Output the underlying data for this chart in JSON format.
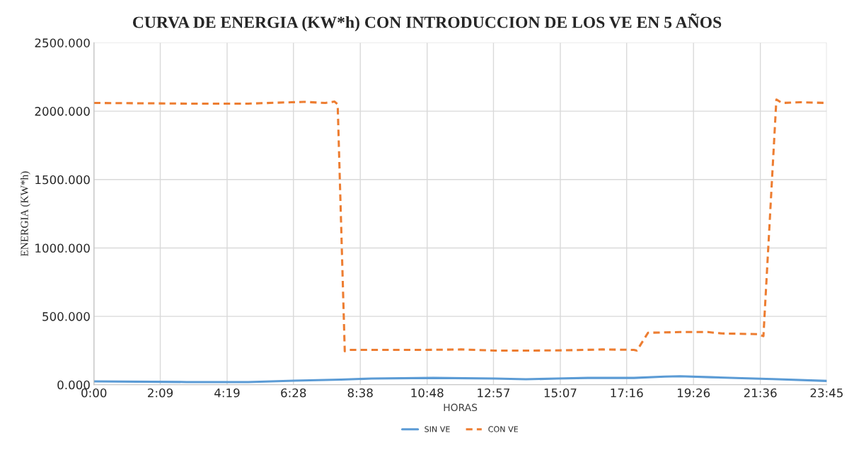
{
  "chart_data": {
    "type": "line",
    "title": "CURVA DE ENERGIA (KW*h) CON INTRODUCCION DE LOS VE EN 5 AÑOS",
    "xlabel": "HORAS",
    "ylabel": "ENERGIA (KW*h)",
    "xlim": [
      0,
      23.75
    ],
    "xticks": [
      {
        "value": 0,
        "label": "0:00"
      },
      {
        "value": 2.15,
        "label": "2:09"
      },
      {
        "value": 4.3167,
        "label": "4:19"
      },
      {
        "value": 6.4667,
        "label": "6:28"
      },
      {
        "value": 8.6333,
        "label": "8:38"
      },
      {
        "value": 10.8,
        "label": "10:48"
      },
      {
        "value": 12.95,
        "label": "12:57"
      },
      {
        "value": 15.1167,
        "label": "15:07"
      },
      {
        "value": 17.2667,
        "label": "17:16"
      },
      {
        "value": 19.4333,
        "label": "19:26"
      },
      {
        "value": 21.6,
        "label": "21:36"
      },
      {
        "value": 23.75,
        "label": "23:45"
      }
    ],
    "ylim": [
      0,
      2500
    ],
    "yticks": [
      {
        "value": 0,
        "label": "0.000"
      },
      {
        "value": 500,
        "label": "500.000"
      },
      {
        "value": 1000,
        "label": "1000.000"
      },
      {
        "value": 1500,
        "label": "1500.000"
      },
      {
        "value": 2000,
        "label": "2000.000"
      },
      {
        "value": 2500,
        "label": "2500.000"
      }
    ],
    "grid": true,
    "legend": "bottom",
    "series": [
      {
        "name": "SIN VE",
        "color": "#5b9bd5",
        "line_style": "solid",
        "x": [
          0,
          3,
          5,
          6.5,
          8,
          9,
          11,
          13,
          14,
          15,
          16,
          17.5,
          18.5,
          19,
          20,
          21,
          22,
          23.75
        ],
        "values": [
          25,
          20,
          20,
          30,
          38,
          45,
          50,
          45,
          40,
          45,
          50,
          50,
          60,
          62,
          55,
          48,
          42,
          28
        ]
      },
      {
        "name": "CON VE",
        "color": "#ed7d31",
        "line_style": "dashed",
        "x": [
          0,
          3.15,
          5,
          6.4,
          6.8,
          7.5,
          7.8,
          7.9,
          8.13,
          8.25,
          10.7,
          11.9,
          13,
          14.2,
          15.3,
          16.5,
          17.5,
          17.6,
          17.96,
          19,
          19.9,
          20.35,
          21.5,
          21.7,
          22.12,
          22.3,
          22.9,
          23.75
        ],
        "values": [
          2060,
          2055,
          2055,
          2065,
          2068,
          2060,
          2070,
          2050,
          245,
          255,
          255,
          258,
          250,
          250,
          252,
          258,
          255,
          250,
          380,
          385,
          385,
          375,
          370,
          355,
          2085,
          2060,
          2065,
          2060
        ]
      }
    ]
  }
}
